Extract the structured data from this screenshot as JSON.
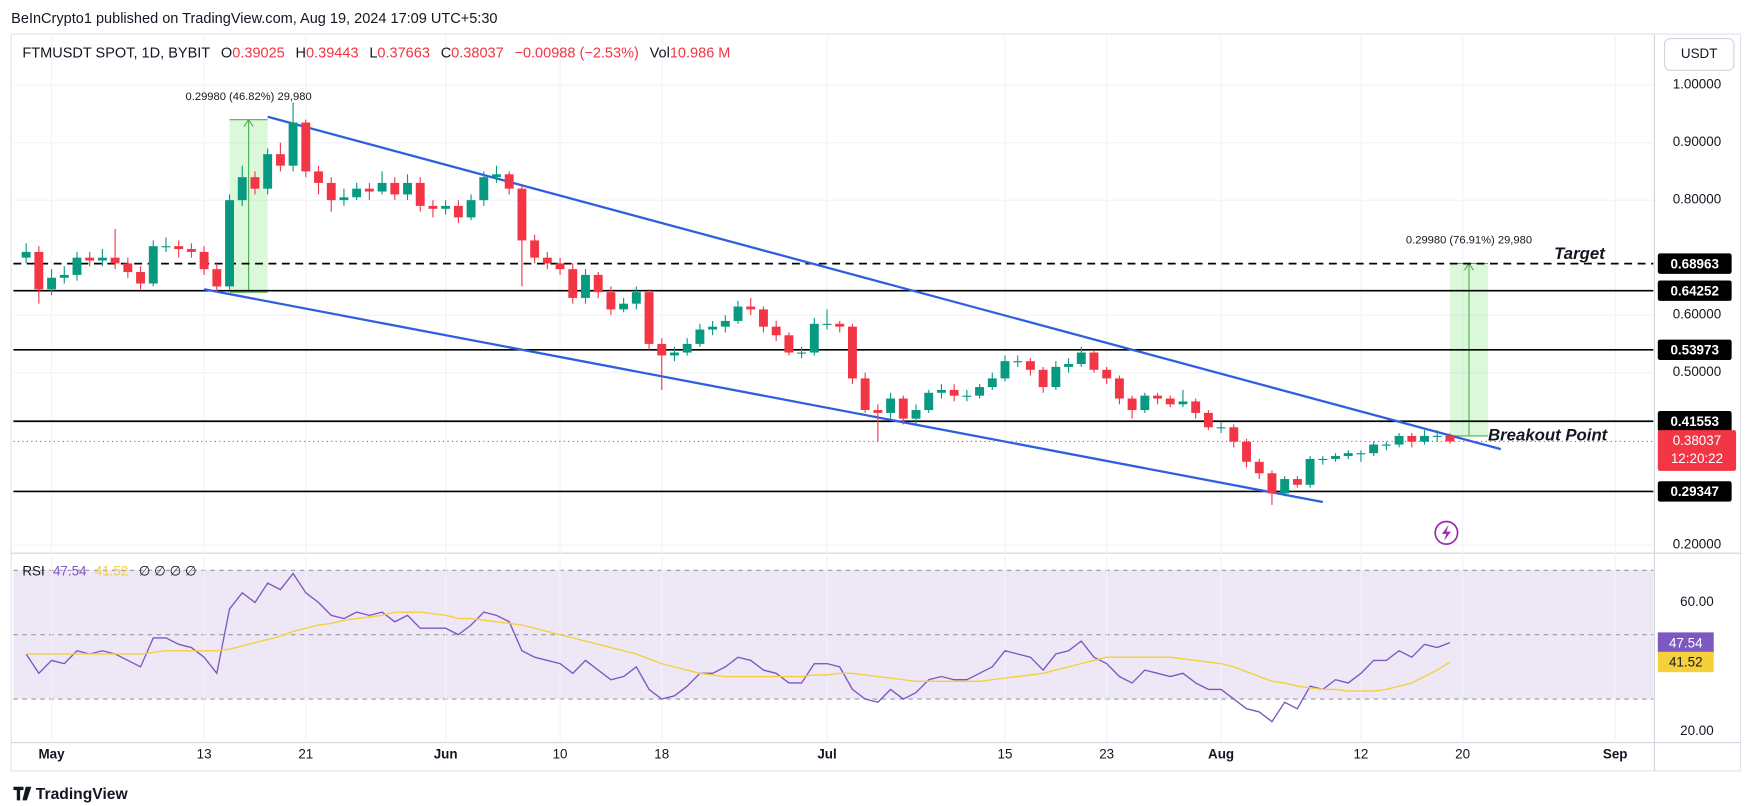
{
  "header": {
    "publisher": "BeInCrypto1 published on TradingView.com, Aug 19, 2024 17:09 UTC+5:30",
    "footer": "TradingView"
  },
  "chart_data": [
    {
      "type": "candlestick",
      "title": "FTMUSDT SPOT, 1D, BYBIT",
      "ohlc_labels": [
        "O",
        "H",
        "L",
        "C"
      ],
      "change": "−0.00988 (−2.53%)",
      "volume_label": "Vol",
      "volume": "10.986 M",
      "currency": "USDT",
      "countdown": "12:20:22",
      "up_color": "#089981",
      "down_color": "#f23645",
      "x": [
        "Apr 29",
        "Apr 30",
        "May 1",
        "May 2",
        "May 3",
        "May 4",
        "May 5",
        "May 6",
        "May 7",
        "May 8",
        "May 9",
        "May 10",
        "May 11",
        "May 12",
        "May 13",
        "May 14",
        "May 15",
        "May 16",
        "May 17",
        "May 18",
        "May 19",
        "May 20",
        "May 21",
        "May 22",
        "May 23",
        "May 24",
        "May 25",
        "May 26",
        "May 27",
        "May 28",
        "May 29",
        "May 30",
        "May 31",
        "Jun 1",
        "Jun 2",
        "Jun 3",
        "Jun 4",
        "Jun 5",
        "Jun 6",
        "Jun 7",
        "Jun 8",
        "Jun 9",
        "Jun 10",
        "Jun 11",
        "Jun 12",
        "Jun 13",
        "Jun 14",
        "Jun 15",
        "Jun 16",
        "Jun 17",
        "Jun 18",
        "Jun 19",
        "Jun 20",
        "Jun 21",
        "Jun 22",
        "Jun 23",
        "Jun 24",
        "Jun 25",
        "Jun 26",
        "Jun 27",
        "Jun 28",
        "Jun 29",
        "Jun 30",
        "Jul 1",
        "Jul 2",
        "Jul 3",
        "Jul 4",
        "Jul 5",
        "Jul 6",
        "Jul 7",
        "Jul 8",
        "Jul 9",
        "Jul 10",
        "Jul 11",
        "Jul 12",
        "Jul 13",
        "Jul 14",
        "Jul 15",
        "Jul 16",
        "Jul 17",
        "Jul 18",
        "Jul 19",
        "Jul 20",
        "Jul 21",
        "Jul 22",
        "Jul 23",
        "Jul 24",
        "Jul 25",
        "Jul 26",
        "Jul 27",
        "Jul 28",
        "Jul 29",
        "Jul 30",
        "Jul 31",
        "Aug 1",
        "Aug 2",
        "Aug 3",
        "Aug 4",
        "Aug 5",
        "Aug 6",
        "Aug 7",
        "Aug 8",
        "Aug 9",
        "Aug 10",
        "Aug 11",
        "Aug 12",
        "Aug 13",
        "Aug 14",
        "Aug 15",
        "Aug 16",
        "Aug 17",
        "Aug 18",
        "Aug 19"
      ],
      "open": [
        0.7,
        0.71,
        0.645,
        0.665,
        0.67,
        0.7,
        0.695,
        0.7,
        0.69,
        0.675,
        0.655,
        0.72,
        0.72,
        0.715,
        0.71,
        0.68,
        0.65,
        0.8,
        0.84,
        0.82,
        0.88,
        0.86,
        0.935,
        0.85,
        0.83,
        0.8,
        0.805,
        0.82,
        0.815,
        0.83,
        0.81,
        0.83,
        0.79,
        0.785,
        0.79,
        0.77,
        0.8,
        0.84,
        0.845,
        0.82,
        0.73,
        0.7,
        0.69,
        0.68,
        0.63,
        0.67,
        0.64,
        0.61,
        0.62,
        0.64,
        0.55,
        0.53,
        0.535,
        0.55,
        0.575,
        0.58,
        0.59,
        0.615,
        0.61,
        0.58,
        0.565,
        0.535,
        0.535,
        0.585,
        0.585,
        0.58,
        0.49,
        0.435,
        0.43,
        0.455,
        0.42,
        0.435,
        0.465,
        0.47,
        0.46,
        0.46,
        0.475,
        0.49,
        0.52,
        0.52,
        0.505,
        0.475,
        0.51,
        0.515,
        0.535,
        0.505,
        0.49,
        0.455,
        0.435,
        0.46,
        0.455,
        0.445,
        0.45,
        0.43,
        0.405,
        0.405,
        0.38,
        0.345,
        0.325,
        0.29,
        0.315,
        0.305,
        0.35,
        0.35,
        0.355,
        0.36,
        0.36,
        0.375,
        0.375,
        0.39,
        0.38,
        0.39,
        0.39025
      ],
      "high": [
        0.725,
        0.72,
        0.68,
        0.685,
        0.71,
        0.71,
        0.715,
        0.75,
        0.7,
        0.685,
        0.73,
        0.735,
        0.73,
        0.725,
        0.72,
        0.69,
        0.81,
        0.86,
        0.85,
        0.89,
        0.9,
        0.97,
        0.94,
        0.86,
        0.84,
        0.82,
        0.83,
        0.83,
        0.85,
        0.84,
        0.845,
        0.84,
        0.8,
        0.8,
        0.8,
        0.81,
        0.85,
        0.86,
        0.85,
        0.825,
        0.74,
        0.71,
        0.7,
        0.69,
        0.68,
        0.675,
        0.65,
        0.63,
        0.65,
        0.645,
        0.56,
        0.545,
        0.56,
        0.585,
        0.59,
        0.6,
        0.625,
        0.63,
        0.615,
        0.59,
        0.57,
        0.545,
        0.595,
        0.61,
        0.59,
        0.585,
        0.5,
        0.445,
        0.465,
        0.46,
        0.445,
        0.47,
        0.48,
        0.48,
        0.47,
        0.48,
        0.5,
        0.53,
        0.53,
        0.525,
        0.51,
        0.52,
        0.525,
        0.545,
        0.54,
        0.51,
        0.495,
        0.46,
        0.465,
        0.465,
        0.46,
        0.47,
        0.455,
        0.435,
        0.415,
        0.41,
        0.385,
        0.35,
        0.33,
        0.32,
        0.32,
        0.355,
        0.355,
        0.36,
        0.365,
        0.365,
        0.38,
        0.38,
        0.395,
        0.395,
        0.4,
        0.4,
        0.39443
      ],
      "low": [
        0.69,
        0.62,
        0.635,
        0.655,
        0.66,
        0.685,
        0.685,
        0.68,
        0.665,
        0.645,
        0.65,
        0.71,
        0.7,
        0.7,
        0.67,
        0.64,
        0.645,
        0.79,
        0.81,
        0.81,
        0.85,
        0.85,
        0.84,
        0.81,
        0.78,
        0.79,
        0.8,
        0.8,
        0.81,
        0.8,
        0.8,
        0.78,
        0.77,
        0.775,
        0.76,
        0.765,
        0.79,
        0.83,
        0.81,
        0.65,
        0.69,
        0.68,
        0.67,
        0.62,
        0.62,
        0.63,
        0.6,
        0.605,
        0.61,
        0.54,
        0.47,
        0.52,
        0.53,
        0.545,
        0.565,
        0.57,
        0.585,
        0.6,
        0.57,
        0.555,
        0.53,
        0.525,
        0.53,
        0.575,
        0.57,
        0.48,
        0.43,
        0.38,
        0.42,
        0.41,
        0.41,
        0.43,
        0.455,
        0.45,
        0.45,
        0.455,
        0.47,
        0.485,
        0.51,
        0.495,
        0.465,
        0.47,
        0.5,
        0.51,
        0.5,
        0.48,
        0.445,
        0.42,
        0.43,
        0.445,
        0.44,
        0.44,
        0.42,
        0.4,
        0.395,
        0.37,
        0.335,
        0.315,
        0.27,
        0.285,
        0.3,
        0.3,
        0.34,
        0.345,
        0.35,
        0.345,
        0.355,
        0.365,
        0.37,
        0.37,
        0.375,
        0.38,
        0.37663
      ],
      "close": [
        0.71,
        0.645,
        0.665,
        0.67,
        0.7,
        0.695,
        0.7,
        0.69,
        0.675,
        0.655,
        0.72,
        0.72,
        0.715,
        0.71,
        0.68,
        0.65,
        0.8,
        0.84,
        0.82,
        0.88,
        0.86,
        0.935,
        0.85,
        0.83,
        0.8,
        0.805,
        0.82,
        0.815,
        0.83,
        0.81,
        0.83,
        0.79,
        0.785,
        0.79,
        0.77,
        0.8,
        0.84,
        0.845,
        0.82,
        0.73,
        0.7,
        0.69,
        0.68,
        0.63,
        0.67,
        0.64,
        0.61,
        0.62,
        0.64,
        0.55,
        0.53,
        0.535,
        0.55,
        0.575,
        0.58,
        0.59,
        0.615,
        0.61,
        0.58,
        0.565,
        0.535,
        0.535,
        0.585,
        0.585,
        0.58,
        0.49,
        0.435,
        0.43,
        0.455,
        0.42,
        0.435,
        0.465,
        0.47,
        0.46,
        0.46,
        0.475,
        0.49,
        0.52,
        0.52,
        0.505,
        0.475,
        0.51,
        0.515,
        0.535,
        0.505,
        0.49,
        0.455,
        0.435,
        0.46,
        0.455,
        0.445,
        0.45,
        0.43,
        0.405,
        0.405,
        0.38,
        0.345,
        0.325,
        0.29,
        0.315,
        0.305,
        0.35,
        0.35,
        0.355,
        0.36,
        0.36,
        0.375,
        0.375,
        0.39,
        0.38,
        0.39,
        0.39025,
        0.38037
      ],
      "xlim": [
        "Apr 28",
        "Sep 4"
      ],
      "xticks": [
        {
          "value": "May 1",
          "label": "May"
        },
        {
          "value": "May 13",
          "label": "13"
        },
        {
          "value": "May 21",
          "label": "21"
        },
        {
          "value": "Jun 1",
          "label": "Jun"
        },
        {
          "value": "Jun 10",
          "label": "10"
        },
        {
          "value": "Jun 18",
          "label": "18"
        },
        {
          "value": "Jul 1",
          "label": "Jul"
        },
        {
          "value": "Jul 15",
          "label": "15"
        },
        {
          "value": "Jul 23",
          "label": "23"
        },
        {
          "value": "Aug 1",
          "label": "Aug"
        },
        {
          "value": "Aug 12",
          "label": "12"
        },
        {
          "value": "Aug 20",
          "label": "20"
        },
        {
          "value": "Sep 1",
          "label": "Sep"
        }
      ],
      "ylim": [
        0.188,
        1.085
      ],
      "yticks": [
        {
          "value": 1.0,
          "label": "1.00000"
        },
        {
          "value": 0.9,
          "label": "0.90000"
        },
        {
          "value": 0.8,
          "label": "0.80000"
        },
        {
          "value": 0.6,
          "label": "0.60000"
        },
        {
          "value": 0.5,
          "label": "0.50000"
        },
        {
          "value": 0.2,
          "label": "0.20000"
        }
      ],
      "grid": true,
      "levels": [
        {
          "value": 0.68963,
          "style": "dashed",
          "label": "Target"
        },
        {
          "value": 0.64252,
          "style": "solid"
        },
        {
          "value": 0.53973,
          "style": "solid"
        },
        {
          "value": 0.41553,
          "style": "solid"
        },
        {
          "value": 0.29347,
          "style": "solid"
        }
      ],
      "trendlines": [
        {
          "x": [
            "May 18",
            "Aug 23"
          ],
          "y": [
            0.945,
            0.367
          ],
          "color": "#2f5fe0"
        },
        {
          "x": [
            "May 13",
            "Aug 9"
          ],
          "y": [
            0.645,
            0.275
          ],
          "color": "#2f5fe0"
        }
      ],
      "measures": [
        {
          "label": "0.29980 (46.82%) 29,980",
          "x": [
            "May 15",
            "May 18"
          ],
          "y": [
            0.64,
            0.94
          ]
        },
        {
          "label": "0.29980 (76.91%) 29,980",
          "x": [
            "Aug 19",
            "Aug 22"
          ],
          "y": [
            0.39,
            0.69
          ]
        }
      ],
      "annotations": [
        {
          "text": "Breakout Point",
          "x": "Aug 22",
          "y": 0.39
        }
      ]
    },
    {
      "type": "line",
      "legend_extra": "∅ ∅ ∅ ∅",
      "series": [
        {
          "name": "RSI",
          "color": "#7e57c2",
          "values": [
            44,
            38,
            42,
            41,
            45,
            44,
            45,
            44,
            42,
            40,
            49,
            49,
            47,
            46,
            43,
            38,
            58,
            63,
            60,
            66,
            64,
            69,
            63,
            60,
            56,
            55,
            57,
            56,
            57,
            54,
            56,
            52,
            52,
            52,
            50,
            53,
            57,
            56,
            54,
            45,
            43,
            42,
            41,
            38,
            42,
            39,
            36,
            37,
            40,
            33,
            30,
            31,
            34,
            38,
            38,
            40,
            43,
            42,
            39,
            38,
            35,
            35,
            41,
            41,
            40,
            33,
            30,
            29,
            33,
            30,
            32,
            36,
            37,
            36,
            36,
            38,
            40,
            45,
            44,
            43,
            39,
            44,
            45,
            48,
            43,
            41,
            37,
            35,
            39,
            38,
            37,
            38,
            35,
            33,
            33,
            30,
            27,
            26,
            23,
            29,
            27,
            34,
            33,
            36,
            35,
            38,
            42,
            42,
            45,
            43,
            47,
            46,
            47.54
          ]
        },
        {
          "color": "#f5cf3c",
          "values": [
            44,
            44,
            44,
            44,
            44,
            44,
            44,
            44,
            44,
            44,
            44.5,
            45,
            45,
            45,
            45,
            45,
            45.5,
            46.5,
            47.5,
            48.5,
            49.5,
            51,
            52,
            53,
            53.5,
            54.5,
            55,
            55.5,
            56,
            57,
            57,
            57,
            56.5,
            56,
            55,
            55,
            54.5,
            54,
            53.5,
            53,
            52,
            51,
            50,
            49,
            48,
            47,
            46,
            45,
            44,
            42.5,
            41,
            40,
            39,
            38,
            37.5,
            37,
            37,
            37,
            37,
            37,
            37,
            37,
            37.5,
            37.5,
            38,
            38,
            37.5,
            37,
            36.5,
            36,
            35.5,
            35.5,
            35.5,
            35.5,
            35.5,
            35.5,
            36,
            36.5,
            37,
            37.5,
            38,
            39,
            40,
            41,
            42,
            43,
            43,
            43,
            43,
            43,
            43,
            42.5,
            42,
            41.5,
            41,
            40,
            38.5,
            37,
            35.5,
            35,
            34,
            33.5,
            33,
            33,
            32.5,
            32.5,
            32.5,
            33,
            34,
            35,
            37,
            39,
            41.52
          ]
        }
      ],
      "ylim": [
        16.5,
        74.6
      ],
      "yticks": [
        {
          "value": 60,
          "label": "60.00"
        },
        {
          "value": 20,
          "label": "20.00"
        }
      ],
      "bands": [
        70,
        50,
        30
      ],
      "band_color": "#ede7f6"
    }
  ]
}
